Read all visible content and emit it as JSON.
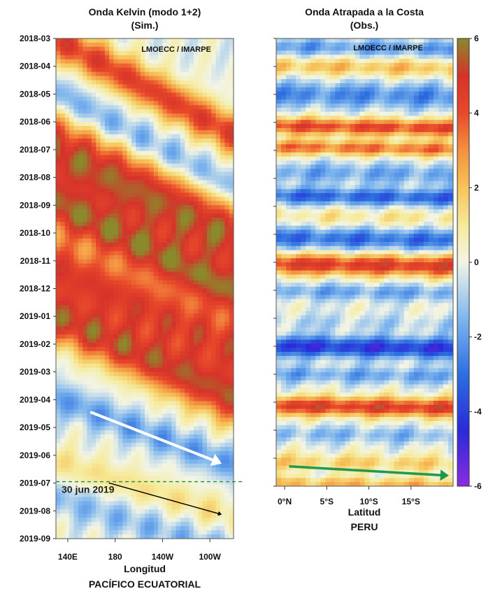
{
  "chart_data": [
    {
      "type": "heatmap",
      "title": "Onda Kelvin (modo 1+2)",
      "subtitle": "(Sim.)",
      "credit": "LMOECC / IMARPE",
      "xlabel": "Longitud",
      "xlabel2": "PACÍFICO ECUATORIAL",
      "x_ticks": [
        "140E",
        "180",
        "140W",
        "100W"
      ],
      "x_tick_values": [
        140,
        180,
        220,
        260
      ],
      "xlim": [
        130,
        280
      ],
      "y_ticks": [
        "2018-03",
        "2018-04",
        "2018-05",
        "2018-06",
        "2018-07",
        "2018-08",
        "2018-09",
        "2018-10",
        "2018-11",
        "2018-12",
        "2019-01",
        "2019-02",
        "2019-03",
        "2019-04",
        "2019-05",
        "2019-06",
        "2019-07",
        "2019-08",
        "2019-09"
      ],
      "ylim": [
        "2018-03",
        "2019-09"
      ],
      "annotations": [
        {
          "text": "30 jun 2019",
          "date": "2019-06-30"
        },
        {
          "kind": "arrow",
          "color": "#ffffff",
          "from": {
            "lon": 160,
            "date": "2019-04-15"
          },
          "to": {
            "lon": 270,
            "date": "2019-06-10"
          }
        },
        {
          "kind": "arrow",
          "color": "#000000",
          "from": {
            "lon": 175,
            "date": "2019-07-01"
          },
          "to": {
            "lon": 270,
            "date": "2019-08-05"
          }
        },
        {
          "kind": "dashed-line",
          "color": "#1f8a3a",
          "date": "2019-06-30"
        }
      ],
      "bands": [
        {
          "start_date": "2018-03-05",
          "start_lon": 135,
          "slope_days_per_deg": 0.7,
          "width_months": 1.0,
          "amp": 4.5
        },
        {
          "start_date": "2018-05-05",
          "start_lon": 135,
          "slope_days_per_deg": 0.7,
          "width_months": 0.9,
          "amp": -2.2
        },
        {
          "start_date": "2018-07-05",
          "start_lon": 135,
          "slope_days_per_deg": 0.65,
          "width_months": 1.9,
          "amp": 5.5
        },
        {
          "start_date": "2018-09-05",
          "start_lon": 135,
          "slope_days_per_deg": 0.65,
          "width_months": 1.2,
          "amp": 4.8
        },
        {
          "start_date": "2018-11-10",
          "start_lon": 135,
          "slope_days_per_deg": 0.6,
          "width_months": 1.5,
          "amp": 4.6
        },
        {
          "start_date": "2019-01-05",
          "start_lon": 135,
          "slope_days_per_deg": 0.6,
          "width_months": 1.3,
          "amp": 5.0
        },
        {
          "start_date": "2019-04-01",
          "start_lon": 135,
          "slope_days_per_deg": 0.5,
          "width_months": 0.8,
          "amp": -2.0
        },
        {
          "start_date": "2019-06-10",
          "start_lon": 135,
          "slope_days_per_deg": 0.4,
          "width_months": 0.8,
          "amp": 1.2
        },
        {
          "start_date": "2019-07-20",
          "start_lon": 135,
          "slope_days_per_deg": 0.4,
          "width_months": 0.8,
          "amp": -1.4
        }
      ]
    },
    {
      "type": "heatmap",
      "title": "Onda Atrapada a la Costa",
      "subtitle": "(Obs.)",
      "credit": "LMOECC / IMARPE",
      "xlabel": "Latitud",
      "xlabel2": "PERU",
      "x_ticks": [
        "0°N",
        "5°S",
        "10°S",
        "15°S"
      ],
      "x_tick_values": [
        0,
        5,
        10,
        15
      ],
      "xlim": [
        -1,
        20
      ],
      "ylim": [
        "2018-03",
        "2019-07"
      ],
      "annotations": [
        {
          "kind": "arrow",
          "color": "#1f9a4a",
          "from": {
            "lat": 0,
            "date": "2019-06-10"
          },
          "to": {
            "lat": 20,
            "date": "2019-06-20"
          }
        }
      ],
      "bands": [
        {
          "date": "2018-03-10",
          "width_months": 0.4,
          "amp": -2.0
        },
        {
          "date": "2018-04-01",
          "width_months": 0.4,
          "amp": 2.0
        },
        {
          "date": "2018-05-01",
          "width_months": 0.6,
          "amp": -2.4
        },
        {
          "date": "2018-06-05",
          "width_months": 0.4,
          "amp": 4.2
        },
        {
          "date": "2018-06-28",
          "width_months": 0.35,
          "amp": 3.4
        },
        {
          "date": "2018-07-25",
          "width_months": 0.5,
          "amp": -1.8
        },
        {
          "date": "2018-08-20",
          "width_months": 0.4,
          "amp": -3.2
        },
        {
          "date": "2018-09-12",
          "width_months": 0.4,
          "amp": 1.0
        },
        {
          "date": "2018-10-05",
          "width_months": 0.5,
          "amp": -3.0
        },
        {
          "date": "2018-11-03",
          "width_months": 0.5,
          "amp": 4.6
        },
        {
          "date": "2018-12-02",
          "width_months": 0.4,
          "amp": -1.8
        },
        {
          "date": "2019-01-05",
          "width_months": 0.4,
          "amp": -0.8
        },
        {
          "date": "2019-02-01",
          "width_months": 0.5,
          "amp": -4.2
        },
        {
          "date": "2019-03-01",
          "width_months": 0.4,
          "amp": -1.8
        },
        {
          "date": "2019-04-05",
          "width_months": 0.45,
          "amp": 4.6
        },
        {
          "date": "2019-05-05",
          "width_months": 0.4,
          "amp": -1.4
        },
        {
          "date": "2019-06-05",
          "width_months": 0.4,
          "amp": 1.6
        },
        {
          "date": "2019-06-28",
          "width_months": 0.3,
          "amp": 2.2
        }
      ]
    }
  ],
  "colorbar": {
    "ticks": [
      "6",
      "4",
      "2",
      "0",
      "-2",
      "-4",
      "-6"
    ],
    "tick_values": [
      6,
      4,
      2,
      0,
      -2,
      -4,
      -6
    ],
    "range": [
      -6,
      6
    ],
    "stops": [
      {
        "v": -6,
        "color": "#8a2be2"
      },
      {
        "v": -4.5,
        "color": "#2a2ad8"
      },
      {
        "v": -3,
        "color": "#2d6fe0"
      },
      {
        "v": -1.5,
        "color": "#7fb6ee"
      },
      {
        "v": 0,
        "color": "#f2f5e6"
      },
      {
        "v": 1,
        "color": "#f6ea9a"
      },
      {
        "v": 2,
        "color": "#f7c35a"
      },
      {
        "v": 3,
        "color": "#f39140"
      },
      {
        "v": 4,
        "color": "#e8492a"
      },
      {
        "v": 5,
        "color": "#d5332a"
      },
      {
        "v": 6,
        "color": "#8a8a2c"
      }
    ]
  }
}
